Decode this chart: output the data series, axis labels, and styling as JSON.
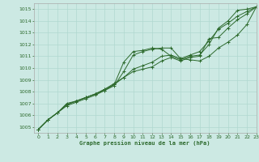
{
  "title": "Graphe pression niveau de la mer (hPa)",
  "background_color": "#cce9e3",
  "line_color": "#2d6a2d",
  "grid_color": "#b0d8d0",
  "xlim": [
    -0.5,
    23
  ],
  "ylim": [
    1004.5,
    1015.5
  ],
  "xticks": [
    0,
    1,
    2,
    3,
    4,
    5,
    6,
    7,
    8,
    9,
    10,
    11,
    12,
    13,
    14,
    15,
    16,
    17,
    18,
    19,
    20,
    21,
    22,
    23
  ],
  "yticks": [
    1005,
    1006,
    1007,
    1008,
    1009,
    1010,
    1011,
    1012,
    1013,
    1014,
    1015
  ],
  "series": [
    {
      "x": [
        0,
        1,
        2,
        3,
        4,
        5,
        6,
        7,
        8,
        9,
        10,
        11,
        12,
        13,
        14,
        15,
        16,
        17,
        18,
        19,
        20,
        21,
        22,
        23
      ],
      "y": [
        1004.8,
        1005.6,
        1006.2,
        1006.8,
        1007.1,
        1007.4,
        1007.7,
        1008.1,
        1008.6,
        1010.5,
        1011.4,
        1011.5,
        1011.7,
        1011.6,
        1011.0,
        1010.7,
        1011.0,
        1011.1,
        1012.0,
        1013.4,
        1014.0,
        1014.9,
        1015.0,
        1015.2
      ]
    },
    {
      "x": [
        0,
        1,
        2,
        3,
        4,
        5,
        6,
        7,
        8,
        9,
        10,
        11,
        12,
        13,
        14,
        15,
        16,
        17,
        18,
        19,
        20,
        21,
        22,
        23
      ],
      "y": [
        1004.8,
        1005.6,
        1006.2,
        1006.9,
        1007.2,
        1007.5,
        1007.8,
        1008.2,
        1008.7,
        1009.2,
        1009.9,
        1010.2,
        1010.5,
        1011.0,
        1011.1,
        1010.8,
        1011.1,
        1011.4,
        1012.3,
        1013.3,
        1013.8,
        1014.4,
        1014.8,
        1015.2
      ]
    },
    {
      "x": [
        0,
        1,
        2,
        3,
        4,
        5,
        6,
        7,
        8,
        9,
        10,
        11,
        12,
        13,
        14,
        15,
        16,
        17,
        18,
        19,
        20,
        21,
        22,
        23
      ],
      "y": [
        1004.8,
        1005.6,
        1006.2,
        1006.9,
        1007.2,
        1007.5,
        1007.8,
        1008.2,
        1008.6,
        1009.2,
        1009.7,
        1009.9,
        1010.1,
        1010.6,
        1010.9,
        1010.6,
        1010.9,
        1011.0,
        1012.5,
        1012.6,
        1013.4,
        1014.1,
        1014.6,
        1015.2
      ]
    },
    {
      "x": [
        0,
        1,
        2,
        3,
        4,
        5,
        6,
        7,
        8,
        9,
        10,
        11,
        12,
        13,
        14,
        15,
        16,
        17,
        18,
        19,
        20,
        21,
        22,
        23
      ],
      "y": [
        1004.8,
        1005.6,
        1006.2,
        1007.0,
        1007.2,
        1007.5,
        1007.8,
        1008.1,
        1008.5,
        1009.7,
        1011.1,
        1011.4,
        1011.6,
        1011.7,
        1011.7,
        1010.8,
        1010.7,
        1010.6,
        1011.0,
        1011.7,
        1012.2,
        1012.8,
        1013.7,
        1015.2
      ]
    }
  ]
}
